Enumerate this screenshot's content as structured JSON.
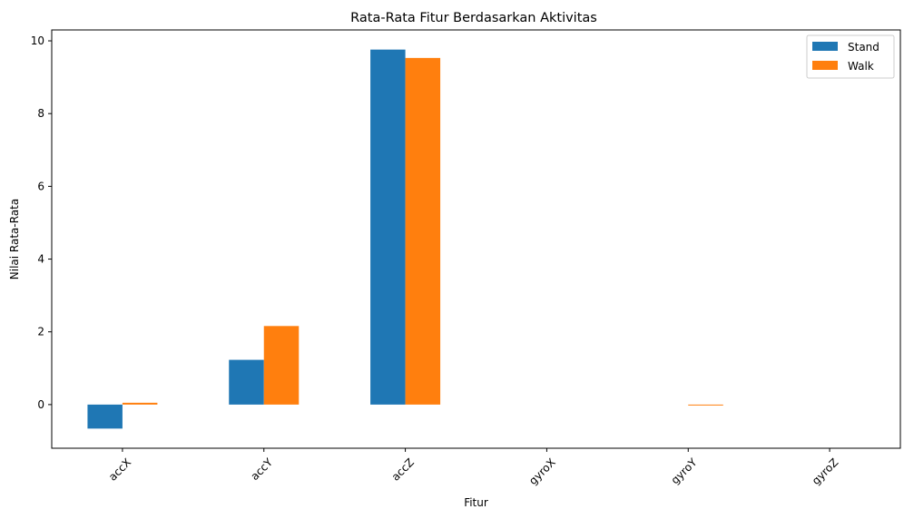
{
  "chart_data": {
    "type": "bar",
    "title": "Rata-Rata Fitur Berdasarkan Aktivitas",
    "xlabel": "Fitur",
    "ylabel": "Nilai Rata-Rata",
    "categories": [
      "accX",
      "accY",
      "accZ",
      "gyroX",
      "gyroY",
      "gyroZ"
    ],
    "series": [
      {
        "name": "Stand",
        "color": "#1f77b4",
        "values": [
          -0.66,
          1.23,
          9.76,
          0.0,
          0.0,
          0.0
        ]
      },
      {
        "name": "Walk",
        "color": "#ff7f0e",
        "values": [
          0.05,
          2.16,
          9.53,
          0.0,
          -0.01,
          0.0
        ]
      }
    ],
    "ylim": [
      -1.2,
      10.3
    ],
    "yticks": [
      0,
      2,
      4,
      6,
      8,
      10
    ],
    "grid": false,
    "legend_position": "top-right",
    "xtick_rotation": 45
  }
}
